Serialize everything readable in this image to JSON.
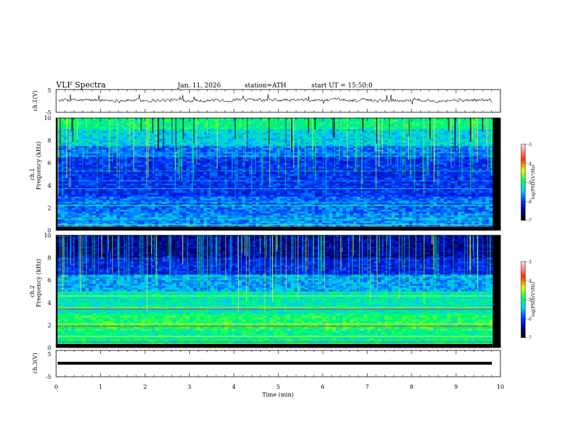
{
  "header": {
    "title": "VLF  Spectra",
    "date": "Jan. 11, 2026",
    "station": "station=ATH",
    "start": "start  UT  =    15:50:0"
  },
  "chart_data": [
    {
      "type": "line",
      "ylabel": "ch.1(V)",
      "ylim": [
        -5,
        5
      ],
      "yticks": [
        "5",
        "-5"
      ],
      "xlim": [
        0,
        10
      ],
      "note_series": "noisy voltage trace around 0 V with spikes"
    },
    {
      "type": "heatmap",
      "ylabel_top": "ch.1",
      "ylabel": "Frequency  (kHz)",
      "ylim": [
        0,
        10
      ],
      "yticks": [
        "0",
        "2",
        "4",
        "6",
        "8",
        "10"
      ],
      "xlim": [
        0,
        10
      ],
      "colorbar": {
        "label": "log(PSD)(V²/Hz)",
        "range": [
          -7,
          -3
        ],
        "ticks": [
          "-3",
          "-4",
          "-5",
          "-6",
          "-7"
        ]
      }
    },
    {
      "type": "heatmap",
      "ylabel_top": "ch.2",
      "ylabel": "Frequency  (kHz)",
      "ylim": [
        0,
        10
      ],
      "yticks": [
        "0",
        "2",
        "4",
        "6",
        "8",
        "10"
      ],
      "xlim": [
        0,
        10
      ],
      "colorbar": {
        "label": "log(PSD)(V²/Hz)",
        "range": [
          -7,
          -3
        ],
        "ticks": [
          "-3",
          "-4",
          "-5",
          "-6",
          "-7"
        ]
      }
    },
    {
      "type": "line",
      "ylabel": "ch.3(V)",
      "ylim": [
        -5,
        5
      ],
      "yticks": [
        "5",
        "-5"
      ],
      "xlabel": "Time  (min)",
      "xlim": [
        0,
        10
      ],
      "xticks": [
        "0",
        "1",
        "2",
        "3",
        "4",
        "5",
        "6",
        "7",
        "8",
        "9",
        "10"
      ]
    }
  ]
}
